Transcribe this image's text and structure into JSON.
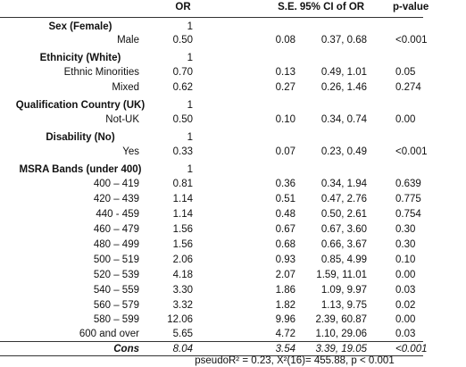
{
  "table": {
    "header": [
      "OR",
      "S.E.",
      "95% CI of OR",
      "p-value"
    ],
    "rows": [
      [
        "Sex (Female)",
        "1"
      ],
      [
        "Male",
        "0.50",
        "0.08",
        "0.37, 0.68",
        "<0.001"
      ],
      [
        "Ethnicity (White)",
        "1"
      ],
      [
        "Ethnic Minorities",
        "0.70",
        "0.13",
        "0.49, 1.01",
        "0.05"
      ],
      [
        "Mixed",
        "0.62",
        "0.27",
        "0.26, 1.46",
        "0.274"
      ],
      [
        "Qualification Country (UK)",
        "1"
      ],
      [
        "Not-UK",
        "0.50",
        "0.10",
        "0.34, 0.74",
        "0.00"
      ],
      [
        "Disability (No)",
        "1"
      ],
      [
        "Yes",
        "0.33",
        "0.07",
        "0.23, 0.49",
        "<0.001"
      ],
      [
        "MSRA Bands (under 400)",
        "1"
      ],
      [
        "400 – 419",
        "0.81",
        "0.36",
        "0.34, 1.94",
        "0.639"
      ],
      [
        "420 – 439",
        "1.14",
        "0.51",
        "0.47, 2.76",
        "0.775"
      ],
      [
        "440 - 459",
        "1.14",
        "0.48",
        "0.50, 2.61",
        "0.754"
      ],
      [
        "460 – 479",
        "1.56",
        "0.67",
        "0.67, 3.60",
        "0.30"
      ],
      [
        "480 – 499",
        "1.56",
        "0.68",
        "0.66, 3.67",
        "0.30"
      ],
      [
        "500 – 519",
        "2.06",
        "0.93",
        "0.85, 4.99",
        "0.10"
      ],
      [
        "520 – 539",
        "4.18",
        "2.07",
        "1.59, 11.01",
        "0.00"
      ],
      [
        "540 – 559",
        "3.30",
        "1.86",
        "1.09, 9.97",
        "0.03"
      ],
      [
        "560 – 579",
        "3.32",
        "1.82",
        "1.13, 9.75",
        "0.02"
      ],
      [
        "580 – 599",
        "12.06",
        "9.96",
        "2.39, 60.87",
        "0.00"
      ],
      [
        "600 and over",
        "5.65",
        "4.72",
        "1.10, 29.06",
        "0.03"
      ]
    ],
    "cons_row": [
      "Cons",
      "8.04",
      "3.54",
      "3.39, 19.05",
      "<0.001"
    ],
    "footnote": "pseudoR² = 0.23, Χ²(16)= 455.88, p < 0.001"
  }
}
